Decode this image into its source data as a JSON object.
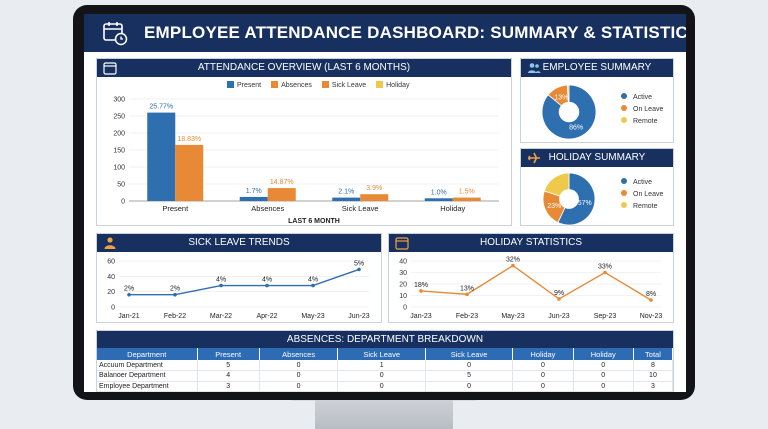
{
  "app": {
    "title": "EMPLOYEE ATTENDANCE DASHBOARD: SUMMARY & STATISTICS"
  },
  "panels": {
    "overview_title": "ATTENDANCE OVERVIEW (LAST 6 MONTHS)",
    "employee_summary_title": "EMPLOYEE SUMMARY",
    "holiday_summary_title": "HOLIDAY SUMMARY",
    "sick_trends_title": "SICK LEAVE TRENDS",
    "holiday_stats_title": "HOLIDAY STATISTICS",
    "absences_title": "ABSENCES: DEPARTMENT BREAKDOWN"
  },
  "colors": {
    "navy": "#17305f",
    "blue": "#2e6fb0",
    "orange": "#e88a35",
    "yellow": "#efc94c"
  },
  "chart_data": [
    {
      "type": "bar",
      "title": "ATTENDANCE OVERVIEW (LAST 6 MONTHS)",
      "xlabel": "LAST 6 MONTH",
      "categories": [
        "Present",
        "Absences",
        "Sick Leave",
        "Holiday"
      ],
      "legend": [
        "Present",
        "Absences",
        "Sick Leave",
        "Holiday"
      ],
      "series": [
        {
          "name": "Present",
          "values": [
            260,
            12,
            10,
            8
          ],
          "labels": [
            "25.77%",
            "1.7%",
            "2.1%",
            "1.0%"
          ],
          "color": "#2e6fb0"
        },
        {
          "name": "Absences",
          "values": [
            165,
            38,
            20,
            10
          ],
          "labels": [
            "18.83%",
            "14.87%",
            "3.9%",
            "1.5%"
          ],
          "color": "#e88a35"
        }
      ],
      "ylim": [
        0,
        300
      ],
      "yticks": [
        0,
        50,
        100,
        150,
        200,
        250,
        300
      ]
    },
    {
      "type": "pie",
      "title": "EMPLOYEE SUMMARY",
      "slices": [
        {
          "label": "Active",
          "value": 86,
          "text": "86%",
          "color": "#2e6fb0"
        },
        {
          "label": "On Leave",
          "value": 13,
          "text": "13%",
          "color": "#e88a35"
        },
        {
          "label": "Remote",
          "value": 1,
          "text": "",
          "color": "#efc94c"
        }
      ]
    },
    {
      "type": "pie",
      "title": "HOLIDAY SUMMARY",
      "slices": [
        {
          "label": "Active",
          "value": 57,
          "text": "57%",
          "color": "#2e6fb0"
        },
        {
          "label": "On Leave",
          "value": 23,
          "text": "23%",
          "color": "#e88a35"
        },
        {
          "label": "Remote",
          "value": 20,
          "text": "",
          "color": "#efc94c"
        }
      ]
    },
    {
      "type": "line",
      "title": "SICK LEAVE TRENDS",
      "x": [
        "Jan-21",
        "Feb-22",
        "Mar-22",
        "Apr-22",
        "May-23",
        "Jun-23"
      ],
      "values": [
        16,
        16,
        28,
        28,
        28,
        49
      ],
      "labels": [
        "2%",
        "2%",
        "4%",
        "4%",
        "4%",
        "5%"
      ],
      "ylim": [
        0,
        60
      ],
      "yticks": [
        0,
        20,
        40,
        60
      ],
      "color": "#2e6fb0"
    },
    {
      "type": "line",
      "title": "HOLIDAY STATISTICS",
      "x": [
        "Jan-23",
        "Feb-23",
        "May-23",
        "Jun-23",
        "Sep-23",
        "Nov-23"
      ],
      "values": [
        14,
        11,
        36,
        7,
        30,
        6
      ],
      "labels": [
        "18%",
        "13%",
        "32%",
        "9%",
        "33%",
        "8%"
      ],
      "ylim": [
        0,
        40
      ],
      "yticks": [
        0,
        10,
        20,
        30,
        40
      ],
      "color": "#e88a35"
    }
  ],
  "table": {
    "headers": [
      "Department",
      "Present",
      "Absences",
      "Sick Leave",
      "Sick Leave",
      "Holiday",
      "Holiday",
      "Total"
    ],
    "rows": [
      [
        "Accuum Department",
        "5",
        "0",
        "1",
        "0",
        "0",
        "0",
        "8"
      ],
      [
        "Balanoer Department",
        "4",
        "0",
        "0",
        "5",
        "0",
        "0",
        "10"
      ],
      [
        "Employee Department",
        "3",
        "0",
        "0",
        "0",
        "0",
        "0",
        "3"
      ]
    ]
  }
}
